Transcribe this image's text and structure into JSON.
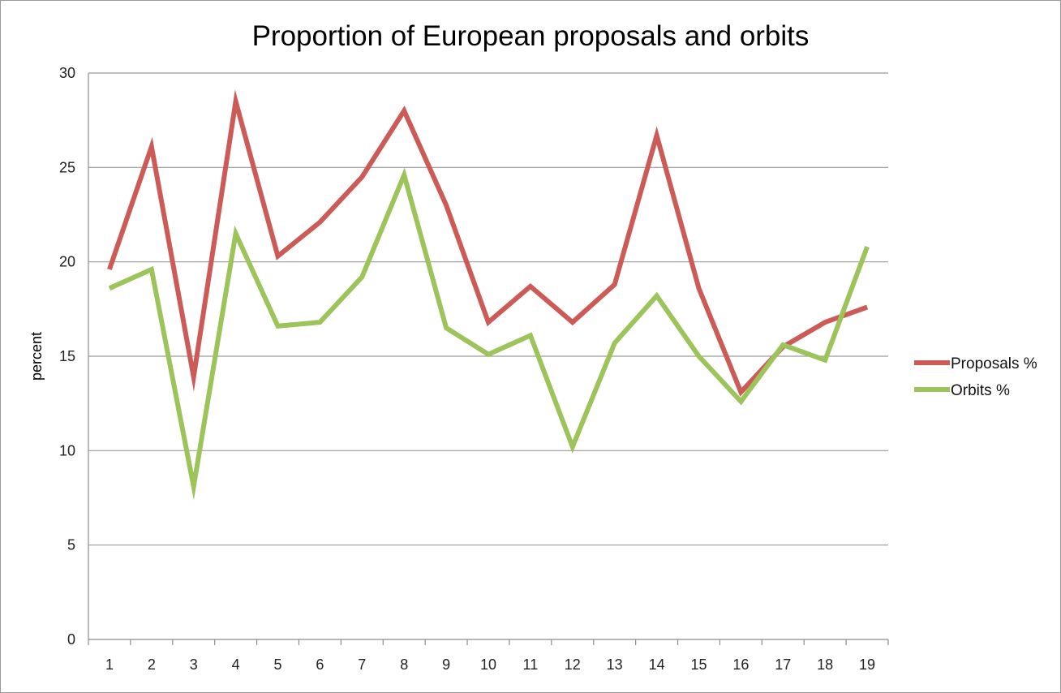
{
  "chart_data": {
    "type": "line",
    "title": "Proportion of European proposals and orbits",
    "xlabel": "",
    "ylabel": "percent",
    "x": [
      "1",
      "2",
      "3",
      "4",
      "5",
      "6",
      "7",
      "8",
      "9",
      "10",
      "11",
      "12",
      "13",
      "14",
      "15",
      "16",
      "17",
      "18",
      "19"
    ],
    "series": [
      {
        "name": "Proposals %",
        "color": "#cc5b57",
        "values": [
          19.6,
          26.1,
          13.9,
          28.5,
          20.3,
          22.1,
          24.5,
          28.0,
          23.0,
          16.8,
          18.7,
          16.8,
          18.8,
          26.7,
          18.6,
          13.1,
          15.5,
          16.8,
          17.6
        ]
      },
      {
        "name": "Orbits %",
        "color": "#9dc35b",
        "values": [
          18.6,
          19.6,
          8.1,
          21.5,
          16.6,
          16.8,
          19.2,
          24.6,
          16.5,
          15.1,
          16.1,
          10.2,
          15.7,
          18.2,
          15.0,
          12.6,
          15.6,
          14.8,
          20.8
        ]
      }
    ],
    "ylim": [
      0,
      30
    ],
    "yticks": [
      "0",
      "5",
      "10",
      "15",
      "20",
      "25",
      "30"
    ],
    "grid": true,
    "legend_position": "right"
  }
}
